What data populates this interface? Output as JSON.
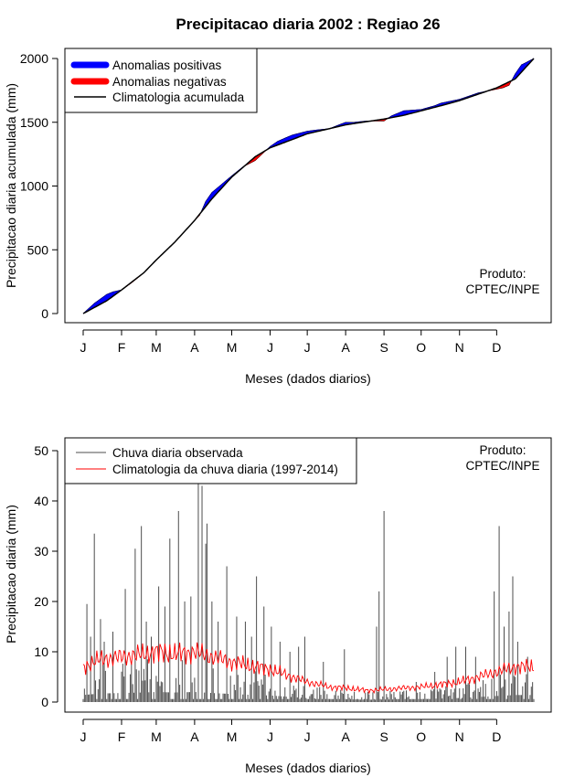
{
  "chart_data": [
    {
      "type": "area",
      "title": "Precipitacao diaria 2002 : Regiao 26",
      "ylabel": "Precipitacao diaria acumulada (mm)",
      "xlabel": "Meses (dados diarios)",
      "months": [
        "J",
        "F",
        "M",
        "A",
        "M",
        "J",
        "J",
        "A",
        "S",
        "O",
        "N",
        "D"
      ],
      "month_start_day": [
        1,
        32,
        60,
        91,
        121,
        152,
        182,
        213,
        244,
        274,
        305,
        335
      ],
      "xlim": [
        1,
        365
      ],
      "ylim": [
        0,
        2000
      ],
      "yticks": [
        0,
        500,
        1000,
        1500,
        2000
      ],
      "legend": {
        "position": "top-left",
        "items": [
          "Anomalias positivas",
          "Anomalias negativas",
          "Climatologia acumulada"
        ]
      },
      "credit": [
        "Produto:",
        "CPTEC/INPE"
      ],
      "colors": {
        "positive": "#0000ff",
        "negative": "#ff0000",
        "climatology": "#000000"
      },
      "climatology_anchor_days": [
        1,
        20,
        32,
        50,
        60,
        75,
        91,
        105,
        121,
        140,
        152,
        170,
        182,
        200,
        213,
        230,
        244,
        260,
        274,
        290,
        305,
        320,
        335,
        350,
        365
      ],
      "climatology_accum_mm": [
        0,
        100,
        185,
        320,
        420,
        560,
        730,
        900,
        1070,
        1230,
        1300,
        1365,
        1410,
        1450,
        1480,
        1505,
        1525,
        1555,
        1590,
        1630,
        1670,
        1720,
        1770,
        1840,
        2000
      ],
      "observed_anchor_days": [
        1,
        10,
        20,
        25,
        32,
        40,
        45,
        50,
        60,
        75,
        91,
        95,
        100,
        105,
        110,
        121,
        130,
        140,
        152,
        158,
        165,
        170,
        182,
        190,
        200,
        205,
        213,
        220,
        230,
        244,
        250,
        255,
        260,
        274,
        285,
        290,
        305,
        320,
        335,
        340,
        345,
        350,
        355,
        365
      ],
      "observed_accum_mm": [
        0,
        80,
        150,
        170,
        185,
        240,
        280,
        320,
        420,
        560,
        730,
        770,
        880,
        950,
        990,
        1080,
        1150,
        1200,
        1310,
        1350,
        1380,
        1400,
        1430,
        1440,
        1450,
        1470,
        1500,
        1500,
        1510,
        1510,
        1550,
        1570,
        1590,
        1600,
        1630,
        1650,
        1680,
        1730,
        1760,
        1770,
        1790,
        1880,
        1950,
        2000
      ]
    },
    {
      "type": "bar",
      "ylabel": "Precipitacao diaria (mm)",
      "xlabel": "Meses (dados diarios)",
      "months": [
        "J",
        "F",
        "M",
        "A",
        "M",
        "J",
        "J",
        "A",
        "S",
        "O",
        "N",
        "D"
      ],
      "month_start_day": [
        1,
        32,
        60,
        91,
        121,
        152,
        182,
        213,
        244,
        274,
        305,
        335
      ],
      "xlim": [
        1,
        365
      ],
      "ylim": [
        0,
        50
      ],
      "yticks": [
        0,
        10,
        20,
        30,
        40,
        50
      ],
      "legend": {
        "position": "top-left",
        "items": [
          "Chuva diaria observada",
          "Climatologia da chuva diaria (1997-2014)"
        ]
      },
      "credit": [
        "Produto:",
        "CPTEC/INPE"
      ],
      "colors": {
        "observed": "#4d4d4d",
        "climatology": "#ff0000"
      },
      "observed_peaks": [
        {
          "day": 4,
          "value": 19.5
        },
        {
          "day": 7,
          "value": 13
        },
        {
          "day": 10,
          "value": 33.5
        },
        {
          "day": 15,
          "value": 16.5
        },
        {
          "day": 18,
          "value": 12
        },
        {
          "day": 25,
          "value": 14
        },
        {
          "day": 35,
          "value": 22.5
        },
        {
          "day": 43,
          "value": 30.5
        },
        {
          "day": 48,
          "value": 35
        },
        {
          "day": 52,
          "value": 16
        },
        {
          "day": 56,
          "value": 13
        },
        {
          "day": 62,
          "value": 23
        },
        {
          "day": 67,
          "value": 19
        },
        {
          "day": 71,
          "value": 32.5
        },
        {
          "day": 78,
          "value": 38
        },
        {
          "day": 83,
          "value": 20
        },
        {
          "day": 88,
          "value": 21
        },
        {
          "day": 94,
          "value": 47
        },
        {
          "day": 97,
          "value": 43
        },
        {
          "day": 100,
          "value": 31.5
        },
        {
          "day": 101,
          "value": 35.5
        },
        {
          "day": 105,
          "value": 20
        },
        {
          "day": 110,
          "value": 16
        },
        {
          "day": 117,
          "value": 27
        },
        {
          "day": 125,
          "value": 17
        },
        {
          "day": 132,
          "value": 16
        },
        {
          "day": 137,
          "value": 13
        },
        {
          "day": 141,
          "value": 25
        },
        {
          "day": 147,
          "value": 19
        },
        {
          "day": 153,
          "value": 15
        },
        {
          "day": 160,
          "value": 12
        },
        {
          "day": 168,
          "value": 10
        },
        {
          "day": 175,
          "value": 11
        },
        {
          "day": 180,
          "value": 13
        },
        {
          "day": 195,
          "value": 8
        },
        {
          "day": 212,
          "value": 10.5
        },
        {
          "day": 238,
          "value": 15
        },
        {
          "day": 240,
          "value": 22
        },
        {
          "day": 244,
          "value": 38
        },
        {
          "day": 270,
          "value": 4
        },
        {
          "day": 285,
          "value": 6
        },
        {
          "day": 295,
          "value": 9
        },
        {
          "day": 302,
          "value": 11
        },
        {
          "day": 310,
          "value": 11
        },
        {
          "day": 318,
          "value": 9
        },
        {
          "day": 333,
          "value": 22
        },
        {
          "day": 337,
          "value": 35
        },
        {
          "day": 341,
          "value": 15
        },
        {
          "day": 345,
          "value": 18
        },
        {
          "day": 348,
          "value": 25
        },
        {
          "day": 352,
          "value": 12
        },
        {
          "day": 360,
          "value": 9
        }
      ],
      "climatology_anchor_days": [
        1,
        15,
        32,
        50,
        60,
        75,
        91,
        105,
        121,
        140,
        152,
        170,
        182,
        200,
        213,
        230,
        244,
        260,
        274,
        290,
        305,
        320,
        335,
        350,
        365
      ],
      "climatology_daily_mm": [
        7,
        8.5,
        9,
        9.5,
        10,
        9.5,
        10,
        9,
        8,
        7,
        6.5,
        5,
        4,
        3,
        2.8,
        2.3,
        2.5,
        2.8,
        3,
        3.5,
        4,
        5,
        6,
        7,
        7
      ]
    }
  ]
}
